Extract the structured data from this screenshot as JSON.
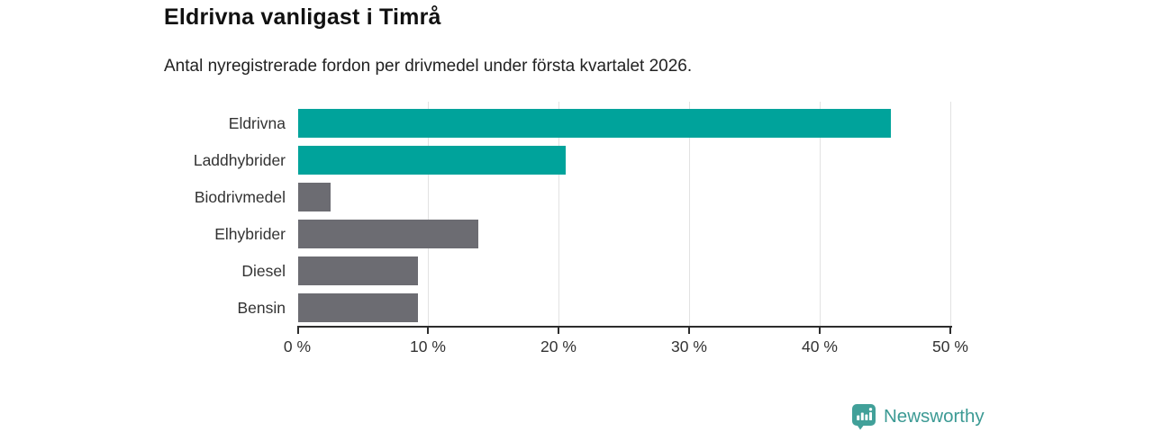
{
  "header": {
    "title": "Eldrivna vanligast i Timrå",
    "subtitle": "Antal nyregistrerade fordon per drivmedel under första kvartalet 2026."
  },
  "chart_data": {
    "type": "bar",
    "orientation": "horizontal",
    "title": "Eldrivna vanligast i Timrå",
    "subtitle": "Antal nyregistrerade fordon per drivmedel under första kvartalet 2026.",
    "categories": [
      "Eldrivna",
      "Laddhybrider",
      "Biodrivmedel",
      "Elhybrider",
      "Diesel",
      "Bensin"
    ],
    "values": [
      45.4,
      20.5,
      2.5,
      13.8,
      9.2,
      9.2
    ],
    "unit": "%",
    "xlim": [
      0,
      50
    ],
    "xticks": [
      0,
      10,
      20,
      30,
      40,
      50
    ],
    "tick_format": "{value} %",
    "grid": true,
    "legend": "none",
    "bar_colors": [
      "#00a39b",
      "#00a39b",
      "#6c6c72",
      "#6c6c72",
      "#6c6c72",
      "#6c6c72"
    ],
    "highlight_color": "#00a39b",
    "default_color": "#6c6c72",
    "axis_color": "#2d2d2d",
    "gridline_color": "#e2e2e2",
    "label_color": "#333333"
  },
  "footer": {
    "brand": "Newsworthy",
    "brand_color": "#3c9a94",
    "logo_icon": "bar-chart-pin-icon"
  }
}
